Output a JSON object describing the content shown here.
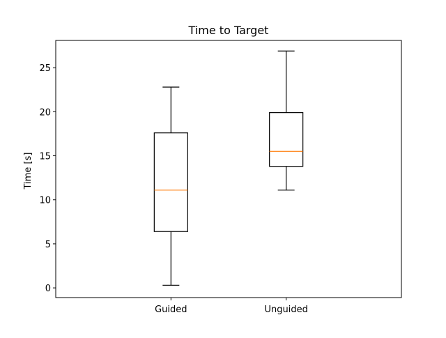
{
  "chart_data": {
    "type": "box",
    "title": "Time to Target",
    "xlabel": "",
    "ylabel": "Time [s]",
    "ylim": [
      -1.1,
      28.1
    ],
    "yticks": [
      0,
      5,
      10,
      15,
      20,
      25
    ],
    "categories": [
      "Guided",
      "Unguided"
    ],
    "boxes": [
      {
        "label": "Guided",
        "whisker_low": 0.3,
        "q1": 6.4,
        "median": 11.1,
        "q3": 17.6,
        "whisker_high": 22.8
      },
      {
        "label": "Unguided",
        "whisker_low": 11.1,
        "q1": 13.8,
        "median": 15.5,
        "q3": 19.9,
        "whisker_high": 26.9
      }
    ],
    "grid": false,
    "colors": {
      "box": "#000000",
      "median": "#ff7f0e"
    }
  }
}
